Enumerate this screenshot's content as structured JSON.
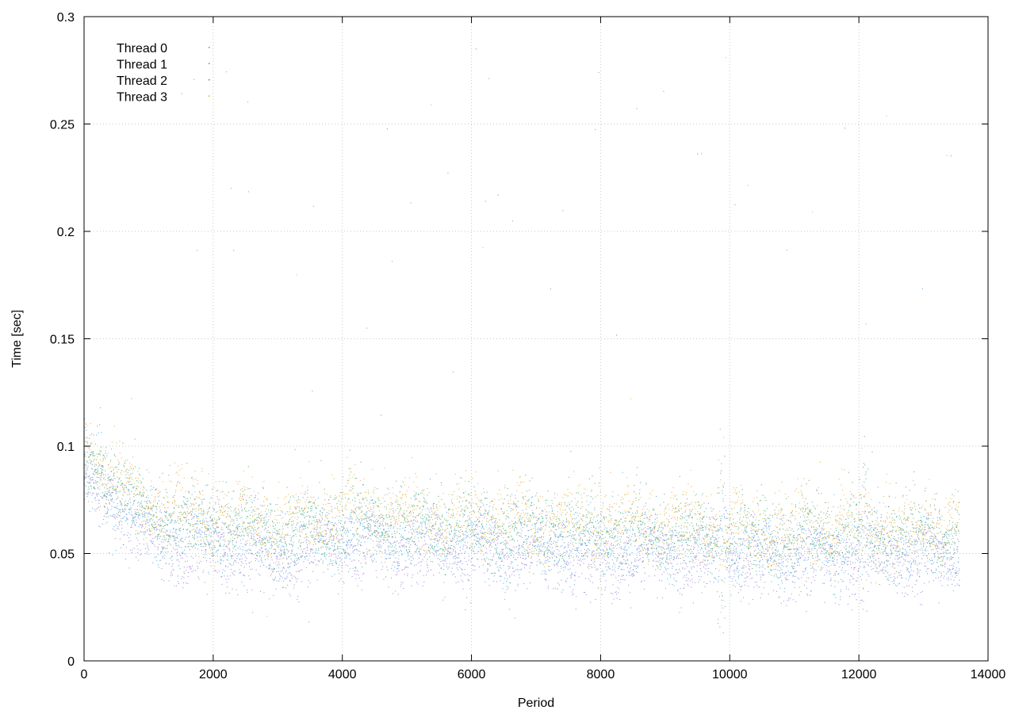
{
  "chart_data": {
    "type": "scatter",
    "title": "",
    "xlabel": "Period",
    "ylabel": "Time [sec]",
    "xlim": [
      0,
      14000
    ],
    "ylim": [
      0,
      0.3
    ],
    "x_ticks": [
      0,
      2000,
      4000,
      6000,
      8000,
      10000,
      12000,
      14000
    ],
    "y_ticks": [
      0,
      0.05,
      0.1,
      0.15,
      0.2,
      0.25,
      0.3
    ],
    "x_tick_labels": [
      "0",
      "2000",
      "4000",
      "6000",
      "8000",
      "10000",
      "12000",
      "14000"
    ],
    "y_tick_labels": [
      "0",
      "0.05",
      "0.1",
      "0.15",
      "0.2",
      "0.25",
      "0.3"
    ],
    "grid": true,
    "legend_position": "top-left",
    "series": [
      {
        "name": "Thread 0",
        "color": "#9470d6",
        "x": [
          0,
          1000,
          2000,
          3000,
          4000,
          5000,
          6000,
          7000,
          8000,
          9000,
          10000,
          11000,
          12000,
          13000,
          13500
        ],
        "y": [
          0.085,
          0.058,
          0.052,
          0.047,
          0.054,
          0.052,
          0.05,
          0.051,
          0.047,
          0.049,
          0.047,
          0.047,
          0.049,
          0.048,
          0.048
        ]
      },
      {
        "name": "Thread 1",
        "color": "#2f9ee0",
        "x": [
          0,
          1000,
          2000,
          3000,
          4000,
          5000,
          6000,
          7000,
          8000,
          9000,
          10000,
          11000,
          12000,
          13000,
          13500
        ],
        "y": [
          0.09,
          0.062,
          0.058,
          0.054,
          0.058,
          0.058,
          0.056,
          0.056,
          0.054,
          0.055,
          0.052,
          0.052,
          0.054,
          0.053,
          0.054
        ]
      },
      {
        "name": "Thread 2",
        "color": "#2aa06c",
        "x": [
          0,
          1000,
          2000,
          3000,
          4000,
          5000,
          6000,
          7000,
          8000,
          9000,
          10000,
          11000,
          12000,
          13000,
          13500
        ],
        "y": [
          0.092,
          0.068,
          0.064,
          0.06,
          0.064,
          0.064,
          0.062,
          0.062,
          0.06,
          0.06,
          0.058,
          0.058,
          0.06,
          0.059,
          0.06
        ]
      },
      {
        "name": "Thread 3",
        "color": "#e6a51c",
        "x": [
          0,
          1000,
          2000,
          3000,
          4000,
          5000,
          6000,
          7000,
          8000,
          9000,
          10000,
          11000,
          12000,
          13000,
          13500
        ],
        "y": [
          0.095,
          0.073,
          0.069,
          0.064,
          0.068,
          0.068,
          0.066,
          0.066,
          0.063,
          0.064,
          0.061,
          0.061,
          0.063,
          0.062,
          0.063
        ]
      }
    ]
  }
}
